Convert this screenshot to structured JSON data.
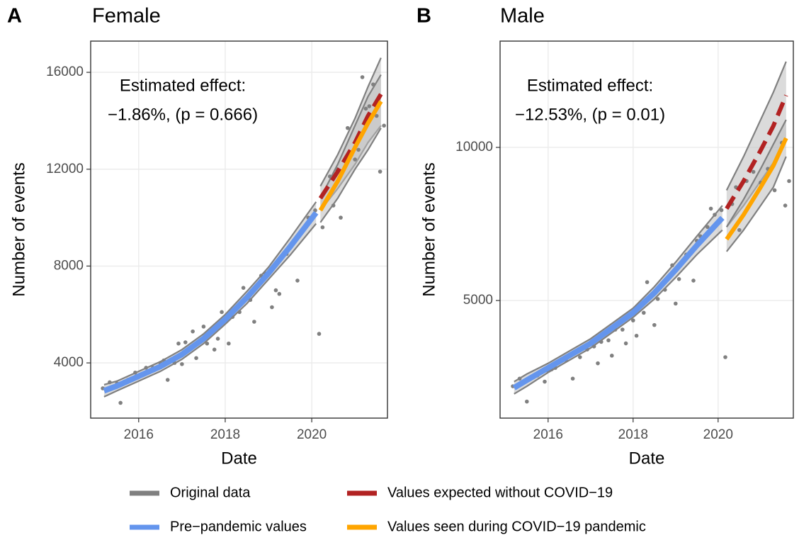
{
  "chart_data": [
    {
      "type": "line",
      "panel": "A",
      "title": "Female",
      "xlabel": "Date",
      "ylabel": "Number of events",
      "annotation": [
        "Estimated effect:",
        "−1.86%, (p = 0.666)"
      ],
      "xlim": [
        2014.89,
        2021.75
      ],
      "xticks": [
        2016,
        2018,
        2020
      ],
      "ylim": [
        1720,
        17290
      ],
      "yticks": [
        4000,
        8000,
        12000,
        16000
      ],
      "grid": true,
      "series": [
        {
          "name": "Original data",
          "color": "#808080",
          "marker": "points",
          "x": [
            2015.17,
            2015.33,
            2015.5,
            2015.58,
            2015.75,
            2015.92,
            2016.08,
            2016.17,
            2016.33,
            2016.5,
            2016.58,
            2016.67,
            2016.83,
            2016.92,
            2017,
            2017.08,
            2017.25,
            2017.33,
            2017.5,
            2017.58,
            2017.75,
            2017.83,
            2017.92,
            2018.08,
            2018.17,
            2018.33,
            2018.42,
            2018.58,
            2018.67,
            2018.83,
            2018.92,
            2019.08,
            2019.17,
            2019.25,
            2019.42,
            2019.58,
            2019.67,
            2019.83,
            2019.92,
            2020.08,
            2020.17,
            2020.25,
            2020.42,
            2020.5,
            2020.58,
            2020.67,
            2020.83,
            2020.92,
            2021,
            2021.08,
            2021.17,
            2021.25,
            2021.33,
            2021.42,
            2021.5,
            2021.58,
            2021.67
          ],
          "values": [
            2950,
            3200,
            3150,
            2350,
            3300,
            3600,
            3550,
            3800,
            3800,
            4000,
            4100,
            3300,
            4000,
            4800,
            3950,
            4850,
            5300,
            4200,
            5500,
            4800,
            4550,
            5000,
            6100,
            4800,
            5900,
            6100,
            7100,
            6600,
            5700,
            7600,
            7700,
            6300,
            7000,
            6850,
            8500,
            9000,
            7400,
            9600,
            10000,
            10300,
            5200,
            9600,
            11700,
            10500,
            12000,
            10000,
            13700,
            12600,
            12400,
            12800,
            15800,
            14500,
            14600,
            15500,
            14200,
            11900,
            13800
          ]
        },
        {
          "name": "Pre−pandemic values",
          "color": "#6495ed",
          "marker": "solid",
          "x": [
            2015.2,
            2015.5,
            2016,
            2016.5,
            2017,
            2017.5,
            2018,
            2018.5,
            2019,
            2019.5,
            2020.1
          ],
          "values": [
            2850,
            3050,
            3450,
            3850,
            4350,
            5000,
            5800,
            6700,
            7700,
            8800,
            10200
          ],
          "lower": [
            2600,
            2850,
            3250,
            3650,
            4150,
            4800,
            5600,
            6450,
            7450,
            8450,
            9750
          ],
          "upper": [
            3100,
            3250,
            3650,
            4050,
            4550,
            5200,
            6000,
            6950,
            7950,
            9150,
            10650
          ]
        },
        {
          "name": "Values expected without COVID−19",
          "color": "#b22222",
          "marker": "dashed",
          "x": [
            2020.2,
            2020.6,
            2021,
            2021.3,
            2021.6
          ],
          "values": [
            10800,
            11900,
            13100,
            14200,
            15100
          ],
          "lower": [
            10300,
            11200,
            12200,
            13100,
            13800
          ],
          "upper": [
            11300,
            12600,
            14100,
            15400,
            16600
          ]
        },
        {
          "name": "Values seen during COVID−19 pandemic",
          "color": "#ffa500",
          "marker": "solid",
          "x": [
            2020.2,
            2020.6,
            2021,
            2021.3,
            2021.6
          ],
          "values": [
            10300,
            11500,
            12900,
            13900,
            14800
          ],
          "lower": [
            9800,
            10800,
            12000,
            12800,
            13700
          ],
          "upper": [
            10800,
            12200,
            13800,
            15000,
            15900
          ]
        }
      ]
    },
    {
      "type": "line",
      "panel": "B",
      "title": "Male",
      "xlabel": "Date",
      "ylabel": "Number of events",
      "annotation": [
        "Estimated effect:",
        "−12.53%, (p = 0.01)"
      ],
      "xlim": [
        2014.87,
        2021.77
      ],
      "xticks": [
        2016,
        2018,
        2020
      ],
      "ylim": [
        1160,
        13470
      ],
      "yticks": [
        5000,
        10000
      ],
      "grid": true,
      "series": [
        {
          "color": "#808080",
          "marker": "points",
          "x": [
            2015.17,
            2015.33,
            2015.5,
            2015.75,
            2015.92,
            2016,
            2016.08,
            2016.17,
            2016.33,
            2016.42,
            2016.58,
            2016.75,
            2016.83,
            2016.92,
            2017.08,
            2017.17,
            2017.25,
            2017.42,
            2017.5,
            2017.58,
            2017.75,
            2017.83,
            2018,
            2018.08,
            2018.25,
            2018.33,
            2018.42,
            2018.5,
            2018.58,
            2018.75,
            2018.92,
            2019,
            2019.08,
            2019.25,
            2019.42,
            2019.5,
            2019.58,
            2019.75,
            2019.83,
            2019.92,
            2020.08,
            2020.17,
            2020.33,
            2020.42,
            2020.5,
            2020.67,
            2020.83,
            2021,
            2021.17,
            2021.33,
            2021.5,
            2021.58,
            2021.67
          ],
          "values": [
            2200,
            2450,
            1700,
            2550,
            2350,
            2700,
            2750,
            2800,
            3050,
            3050,
            2450,
            3150,
            3450,
            3400,
            3500,
            2950,
            3650,
            3700,
            3200,
            4050,
            4050,
            3600,
            4350,
            3850,
            4600,
            5600,
            5150,
            4200,
            5050,
            5350,
            6150,
            4900,
            5700,
            6500,
            5650,
            6950,
            7100,
            7400,
            8000,
            7800,
            7950,
            3150,
            8150,
            8700,
            7300,
            8900,
            9200,
            8850,
            9300,
            8600,
            10150,
            8100,
            8900
          ]
        },
        {
          "color": "#6495ed",
          "marker": "solid",
          "x": [
            2015.2,
            2015.5,
            2016,
            2016.5,
            2017,
            2017.5,
            2018,
            2018.5,
            2019,
            2019.5,
            2020.1
          ],
          "values": [
            2150,
            2400,
            2800,
            3200,
            3600,
            4100,
            4600,
            5250,
            6000,
            6800,
            7700
          ],
          "lower": [
            1950,
            2200,
            2650,
            3050,
            3450,
            3950,
            4450,
            5050,
            5750,
            6500,
            7300
          ],
          "upper": [
            2350,
            2600,
            2950,
            3350,
            3750,
            4250,
            4750,
            5450,
            6250,
            7100,
            8100
          ]
        },
        {
          "color": "#b22222",
          "marker": "dashed",
          "x": [
            2020.2,
            2020.6,
            2021,
            2021.3,
            2021.6
          ],
          "values": [
            8000,
            8900,
            9900,
            10700,
            11700
          ],
          "lower": [
            7400,
            8100,
            8900,
            9500,
            10300
          ],
          "upper": [
            8600,
            9700,
            10900,
            11800,
            12800
          ]
        },
        {
          "color": "#ffa500",
          "marker": "solid",
          "x": [
            2020.2,
            2020.6,
            2021,
            2021.3,
            2021.6
          ],
          "values": [
            7000,
            7800,
            8700,
            9400,
            10300
          ],
          "lower": [
            6600,
            7300,
            8100,
            8700,
            9700
          ],
          "upper": [
            7400,
            8300,
            9300,
            10100,
            10900
          ]
        }
      ]
    }
  ]
}
